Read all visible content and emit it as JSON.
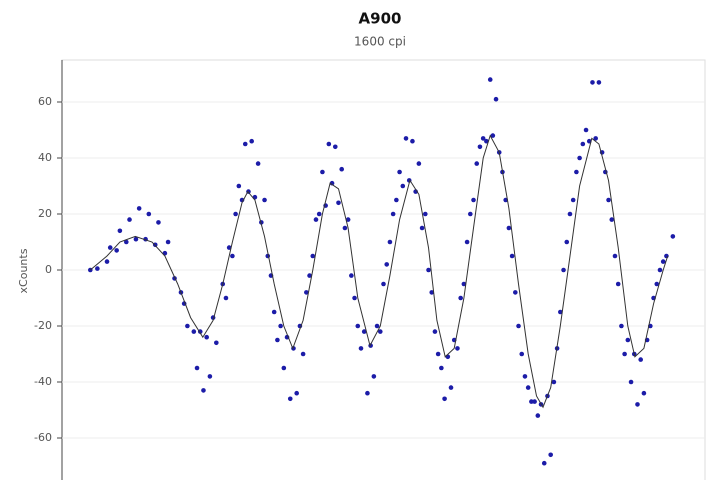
{
  "chart_data": {
    "type": "scatter",
    "title": "A900",
    "subtitle": "1600 cpi",
    "y_label": "xCounts",
    "xlim": [
      0,
      100
    ],
    "ylim": [
      -75,
      75
    ],
    "yticks": [
      -60,
      -40,
      -20,
      0,
      20,
      40,
      60
    ],
    "grid": true,
    "series": [
      {
        "type": "scatter",
        "color": "#1c1ca8",
        "x": [
          4.4,
          5.5,
          7,
          7.5,
          8.5,
          9,
          10,
          10.5,
          11.5,
          12,
          13,
          13.5,
          14.5,
          15,
          16,
          16.5,
          17.5,
          18.5,
          19,
          19.5,
          20.5,
          21,
          21.5,
          22,
          22.5,
          23,
          23.5,
          24,
          25,
          25.5,
          26,
          26.5,
          27,
          27.5,
          28,
          28.5,
          29,
          29.5,
          30,
          30.5,
          31,
          31.5,
          32,
          32.5,
          33,
          33.5,
          34,
          34.5,
          35,
          35.5,
          36,
          36.5,
          37,
          37.5,
          38,
          38.5,
          39,
          39.5,
          40,
          40.5,
          41,
          41.5,
          42,
          42.5,
          43,
          43.5,
          44,
          44.5,
          45,
          45.5,
          46,
          46.5,
          47,
          47.5,
          48,
          48.5,
          49,
          49.5,
          50,
          50.5,
          51,
          51.5,
          52,
          52.5,
          53,
          53.5,
          54,
          54.5,
          55,
          55.5,
          56,
          56.5,
          57,
          57.5,
          58,
          58.5,
          59,
          59.5,
          60,
          60.5,
          61,
          61.5,
          62,
          62.5,
          63,
          63.5,
          64,
          64.5,
          65,
          65.5,
          66,
          66.6,
          67,
          67.5,
          68,
          68.5,
          69,
          69.5,
          70,
          70.5,
          71,
          71.5,
          72,
          72.5,
          73,
          73.5,
          74,
          74.5,
          75,
          75.5,
          76,
          76.5,
          77,
          77.5,
          78,
          78.5,
          79,
          79.5,
          80,
          80.5,
          81,
          81.5,
          82,
          82.5,
          83,
          83.5,
          84,
          84.5,
          85,
          85.5,
          86,
          86.5,
          87,
          87.5,
          88,
          88.5,
          89,
          89.5,
          90,
          90.5,
          91,
          91.5,
          92,
          92.5,
          93,
          93.5,
          94,
          95
        ],
        "values": [
          0,
          0.5,
          3,
          8,
          7,
          14,
          10,
          18,
          11,
          22,
          11,
          20,
          9,
          17,
          6,
          10,
          -3,
          -8,
          -12,
          -20,
          -22,
          -35,
          -22,
          -43,
          -24,
          -38,
          -17,
          -26,
          -5,
          -10,
          8,
          5,
          20,
          30,
          25,
          45,
          28,
          46,
          26,
          38,
          17,
          25,
          5,
          -2,
          -15,
          -25,
          -20,
          -35,
          -24,
          -46,
          -28,
          -44,
          -20,
          -30,
          -8,
          -2,
          5,
          18,
          20,
          35,
          23,
          45,
          31,
          44,
          24,
          36,
          15,
          18,
          -2,
          -10,
          -20,
          -28,
          -22,
          -44,
          -27,
          -38,
          -20,
          -22,
          -5,
          2,
          10,
          20,
          25,
          35,
          30,
          47,
          32,
          46,
          28,
          38,
          15,
          20,
          0,
          -8,
          -22,
          -30,
          -35,
          -46,
          -31,
          -42,
          -25,
          -28,
          -10,
          -5,
          10,
          20,
          25,
          38,
          44,
          47,
          46,
          68,
          48,
          61,
          42,
          35,
          25,
          15,
          5,
          -8,
          -20,
          -30,
          -38,
          -42,
          -47,
          -47,
          -52,
          -48,
          -69,
          -45,
          -66,
          -40,
          -28,
          -15,
          0,
          10,
          20,
          25,
          35,
          40,
          45,
          50,
          46,
          67,
          47,
          67,
          42,
          35,
          25,
          18,
          5,
          -5,
          -20,
          -30,
          -25,
          -40,
          -30,
          -48,
          -32,
          -44,
          -25,
          -20,
          -10,
          -5,
          0,
          3,
          5,
          12
        ]
      },
      {
        "type": "line",
        "color": "#333333",
        "x": [
          4.4,
          7,
          9,
          11.4,
          14,
          16,
          18,
          20,
          21.9,
          23.5,
          25,
          26.5,
          28,
          28.9,
          30,
          31.5,
          33,
          34.5,
          35.9,
          37.5,
          39,
          40.5,
          41.7,
          43,
          44.5,
          46,
          47.9,
          49.5,
          51,
          52.5,
          54.1,
          55.5,
          57,
          58.3,
          59.6,
          61,
          62.5,
          64,
          65.5,
          66.6,
          68,
          69.5,
          71,
          72.5,
          73.8,
          74.8,
          76,
          77.5,
          79,
          80.5,
          82.4,
          83.5,
          85,
          86.5,
          88,
          89.1,
          90.5,
          92,
          93.5,
          94.2
        ],
        "values": [
          0,
          5,
          10,
          12,
          10,
          5,
          -5,
          -17,
          -24,
          -18,
          -5,
          10,
          24,
          28,
          25,
          12,
          -5,
          -20,
          -28,
          -18,
          0,
          20,
          31,
          29,
          15,
          -10,
          -27,
          -20,
          -2,
          18,
          32,
          27,
          8,
          -18,
          -31,
          -28,
          -10,
          15,
          40,
          48,
          42,
          22,
          -5,
          -30,
          -45,
          -49,
          -42,
          -20,
          5,
          30,
          47,
          45,
          32,
          8,
          -20,
          -31,
          -28,
          -12,
          0,
          5
        ]
      }
    ]
  }
}
